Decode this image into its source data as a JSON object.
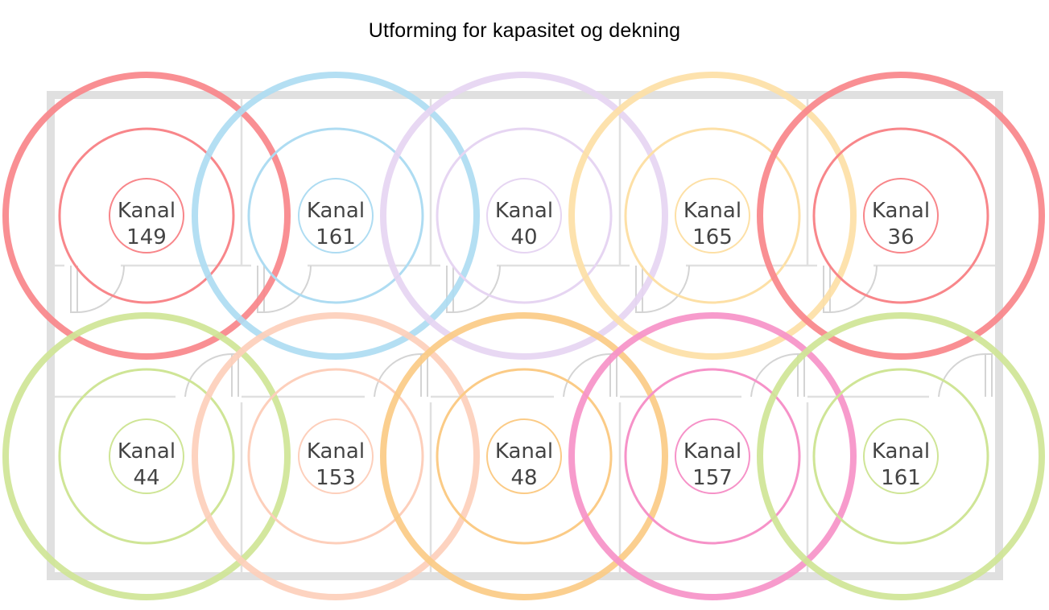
{
  "title": "Utforming for kapasitet og dekning",
  "channel_word": "Kanal",
  "cells": [
    {
      "row": 1,
      "col": 1,
      "channel": "149",
      "color": "#f8868a"
    },
    {
      "row": 1,
      "col": 2,
      "channel": "161",
      "color": "#aedcf2"
    },
    {
      "row": 1,
      "col": 3,
      "channel": "40",
      "color": "#e6d5f2"
    },
    {
      "row": 1,
      "col": 4,
      "channel": "165",
      "color": "#fde0a6"
    },
    {
      "row": 1,
      "col": 5,
      "channel": "36",
      "color": "#f8868a"
    },
    {
      "row": 2,
      "col": 1,
      "channel": "44",
      "color": "#cfe596"
    },
    {
      "row": 2,
      "col": 2,
      "channel": "153",
      "color": "#fdcfbb"
    },
    {
      "row": 2,
      "col": 3,
      "channel": "48",
      "color": "#fbcb86"
    },
    {
      "row": 2,
      "col": 4,
      "channel": "157",
      "color": "#f692c8"
    },
    {
      "row": 2,
      "col": 5,
      "channel": "161",
      "color": "#cfe596"
    }
  ],
  "colors": {
    "walls": "#e0e0e0",
    "doors": "#d4d4d4",
    "label_text": "#444444"
  }
}
